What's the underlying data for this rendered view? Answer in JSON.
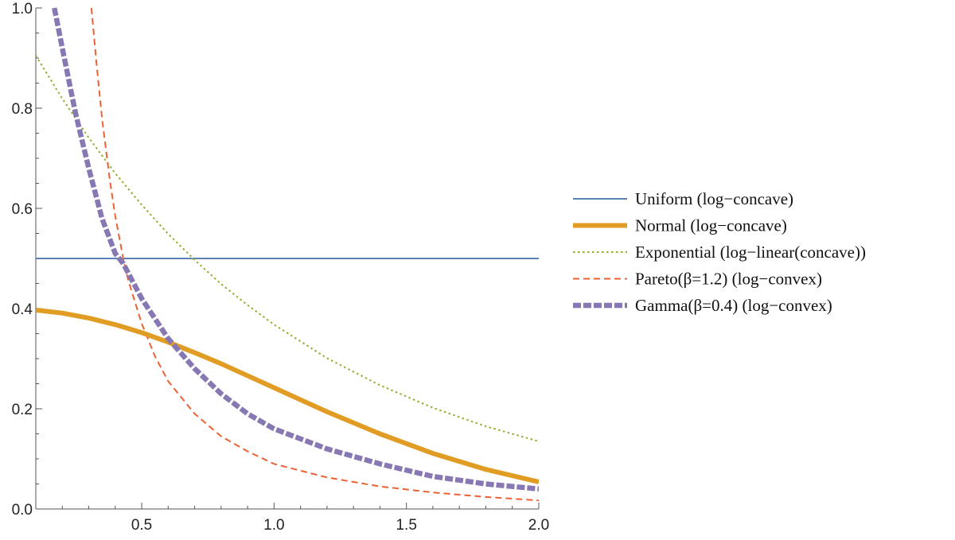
{
  "chart_data": {
    "type": "line",
    "title": "",
    "xlabel": "",
    "ylabel": "",
    "xlim": [
      0.1,
      2.0
    ],
    "ylim": [
      0.0,
      1.0
    ],
    "x_ticks": [
      0.5,
      1.0,
      1.5,
      2.0
    ],
    "x_tick_labels": [
      "0.5",
      "1.0",
      "1.5",
      "2.0"
    ],
    "y_ticks": [
      0.0,
      0.2,
      0.4,
      0.6,
      0.8,
      1.0
    ],
    "y_tick_labels": [
      "0.0",
      "0.2",
      "0.4",
      "0.6",
      "0.8",
      "1.0"
    ],
    "grid": false,
    "legend_position": "right",
    "series": [
      {
        "name": "Uniform (log−concave)",
        "color": "#5e81b5",
        "style": "solid-thin",
        "x": [
          0.1,
          0.5,
          1.0,
          1.5,
          2.0
        ],
        "y": [
          0.5,
          0.5,
          0.5,
          0.5,
          0.5
        ]
      },
      {
        "name": "Normal (log−concave)",
        "color": "#e19c24",
        "style": "solid-thick",
        "x": [
          0.1,
          0.2,
          0.3,
          0.4,
          0.5,
          0.6,
          0.7,
          0.8,
          0.9,
          1.0,
          1.2,
          1.4,
          1.6,
          1.8,
          2.0
        ],
        "y": [
          0.397,
          0.391,
          0.381,
          0.368,
          0.352,
          0.333,
          0.312,
          0.29,
          0.266,
          0.242,
          0.194,
          0.15,
          0.111,
          0.079,
          0.054
        ]
      },
      {
        "name": "Exponential (log−linear(concave))",
        "color": "#8fb032",
        "style": "dotted",
        "x": [
          0.1,
          0.2,
          0.3,
          0.4,
          0.5,
          0.6,
          0.7,
          0.8,
          0.9,
          1.0,
          1.2,
          1.4,
          1.6,
          1.8,
          2.0
        ],
        "y": [
          0.905,
          0.819,
          0.741,
          0.67,
          0.607,
          0.549,
          0.497,
          0.449,
          0.407,
          0.368,
          0.301,
          0.247,
          0.202,
          0.165,
          0.135
        ]
      },
      {
        "name": "Pareto(β=1.2) (log−convex)",
        "color": "#eb6235",
        "style": "dashed",
        "x": [
          0.31,
          0.33,
          0.35,
          0.38,
          0.4,
          0.43,
          0.45,
          0.5,
          0.55,
          0.6,
          0.7,
          0.8,
          0.9,
          1.0,
          1.2,
          1.4,
          1.6,
          1.8,
          2.0
        ],
        "y": [
          1.0,
          0.885,
          0.78,
          0.655,
          0.585,
          0.5,
          0.455,
          0.37,
          0.305,
          0.255,
          0.19,
          0.145,
          0.115,
          0.09,
          0.063,
          0.045,
          0.033,
          0.024,
          0.017
        ]
      },
      {
        "name": "Gamma(β=0.4) (log−convex)",
        "color": "#8778b3",
        "style": "thick-dashed",
        "x": [
          0.17,
          0.2,
          0.25,
          0.3,
          0.35,
          0.4,
          0.43,
          0.5,
          0.6,
          0.7,
          0.8,
          0.9,
          1.0,
          1.2,
          1.4,
          1.6,
          1.8,
          2.0
        ],
        "y": [
          1.0,
          0.92,
          0.79,
          0.68,
          0.58,
          0.51,
          0.49,
          0.42,
          0.34,
          0.28,
          0.23,
          0.19,
          0.16,
          0.12,
          0.09,
          0.065,
          0.05,
          0.04
        ]
      }
    ]
  }
}
